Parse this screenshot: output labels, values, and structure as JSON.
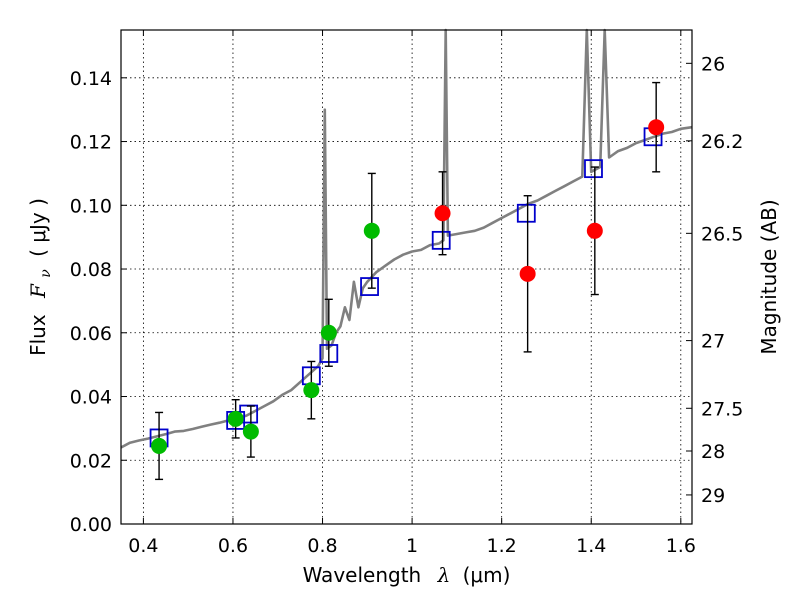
{
  "chart_data": {
    "type": "scatter",
    "xlabel": "Wavelength",
    "xlabel_symbol": "λ",
    "xlabel_unit": "(μm)",
    "ylabel": "Flux",
    "ylabel_symbol": "F",
    "ylabel_subscript": "ν",
    "ylabel_unit": "( μJy )",
    "y2label": "Magnitude (AB)",
    "xlim": [
      0.35,
      1.625
    ],
    "ylim": [
      0.0,
      0.155
    ],
    "x_ticks": [
      0.4,
      0.6,
      0.8,
      1.0,
      1.2,
      1.4,
      1.6
    ],
    "x_tick_labels": [
      "0.4",
      "0.6",
      "0.8",
      "1",
      "1.2",
      "1.4",
      "1.6"
    ],
    "y_ticks": [
      0.0,
      0.02,
      0.04,
      0.06,
      0.08,
      0.1,
      0.12,
      0.14
    ],
    "y_tick_labels": [
      "0.00",
      "0.02",
      "0.04",
      "0.06",
      "0.08",
      "0.10",
      "0.12",
      "0.14"
    ],
    "y2_ticks": [
      {
        "mag": 26,
        "label": "26"
      },
      {
        "mag": 26.2,
        "label": "26.2"
      },
      {
        "mag": 26.5,
        "label": "26.5"
      },
      {
        "mag": 27,
        "label": "27"
      },
      {
        "mag": 27.5,
        "label": "27.5"
      },
      {
        "mag": 28,
        "label": "28"
      },
      {
        "mag": 29,
        "label": "29"
      }
    ],
    "grid": true,
    "colors": {
      "model": "#808080",
      "model_photometry": "#0000cc",
      "detection": "#00bb00",
      "nir": "#ff0000",
      "errorbar": "#000000"
    },
    "model_spectrum": [
      [
        0.35,
        0.024
      ],
      [
        0.37,
        0.0255
      ],
      [
        0.39,
        0.0262
      ],
      [
        0.41,
        0.0268
      ],
      [
        0.43,
        0.0275
      ],
      [
        0.45,
        0.0282
      ],
      [
        0.47,
        0.029
      ],
      [
        0.49,
        0.0292
      ],
      [
        0.51,
        0.0298
      ],
      [
        0.53,
        0.0305
      ],
      [
        0.55,
        0.0312
      ],
      [
        0.57,
        0.0318
      ],
      [
        0.59,
        0.0325
      ],
      [
        0.61,
        0.0332
      ],
      [
        0.63,
        0.034
      ],
      [
        0.65,
        0.0355
      ],
      [
        0.67,
        0.037
      ],
      [
        0.69,
        0.0385
      ],
      [
        0.71,
        0.0405
      ],
      [
        0.73,
        0.042
      ],
      [
        0.75,
        0.0445
      ],
      [
        0.77,
        0.047
      ],
      [
        0.79,
        0.0495
      ],
      [
        0.8,
        0.052
      ],
      [
        0.805,
        0.13
      ],
      [
        0.81,
        0.055
      ],
      [
        0.82,
        0.056
      ],
      [
        0.83,
        0.06
      ],
      [
        0.84,
        0.062
      ],
      [
        0.85,
        0.068
      ],
      [
        0.86,
        0.064
      ],
      [
        0.87,
        0.076
      ],
      [
        0.88,
        0.068
      ],
      [
        0.89,
        0.074
      ],
      [
        0.9,
        0.076
      ],
      [
        0.92,
        0.079
      ],
      [
        0.94,
        0.081
      ],
      [
        0.96,
        0.083
      ],
      [
        0.98,
        0.0845
      ],
      [
        1.0,
        0.0855
      ],
      [
        1.02,
        0.086
      ],
      [
        1.04,
        0.0875
      ],
      [
        1.06,
        0.088
      ],
      [
        1.07,
        0.089
      ],
      [
        1.075,
        0.16
      ],
      [
        1.08,
        0.0905
      ],
      [
        1.1,
        0.091
      ],
      [
        1.12,
        0.0915
      ],
      [
        1.14,
        0.092
      ],
      [
        1.16,
        0.093
      ],
      [
        1.18,
        0.0945
      ],
      [
        1.2,
        0.096
      ],
      [
        1.22,
        0.0975
      ],
      [
        1.24,
        0.099
      ],
      [
        1.26,
        0.1005
      ],
      [
        1.28,
        0.1015
      ],
      [
        1.3,
        0.103
      ],
      [
        1.32,
        0.1045
      ],
      [
        1.34,
        0.106
      ],
      [
        1.36,
        0.1075
      ],
      [
        1.38,
        0.109
      ],
      [
        1.39,
        0.16
      ],
      [
        1.4,
        0.1105
      ],
      [
        1.42,
        0.112
      ],
      [
        1.43,
        0.16
      ],
      [
        1.44,
        0.115
      ],
      [
        1.46,
        0.117
      ],
      [
        1.48,
        0.118
      ],
      [
        1.5,
        0.1195
      ],
      [
        1.52,
        0.1205
      ],
      [
        1.54,
        0.1215
      ],
      [
        1.56,
        0.1225
      ],
      [
        1.58,
        0.123
      ],
      [
        1.6,
        0.124
      ],
      [
        1.625,
        0.1245
      ]
    ],
    "model_photometry": [
      {
        "x": 0.435,
        "y": 0.027
      },
      {
        "x": 0.606,
        "y": 0.0325
      },
      {
        "x": 0.635,
        "y": 0.0345
      },
      {
        "x": 0.775,
        "y": 0.0465
      },
      {
        "x": 0.814,
        "y": 0.0535
      },
      {
        "x": 0.905,
        "y": 0.0745
      },
      {
        "x": 1.065,
        "y": 0.089
      },
      {
        "x": 1.255,
        "y": 0.0975
      },
      {
        "x": 1.405,
        "y": 0.1115
      },
      {
        "x": 1.538,
        "y": 0.1215
      }
    ],
    "observed_optical": [
      {
        "x": 0.435,
        "y": 0.0245,
        "err": 0.0105
      },
      {
        "x": 0.606,
        "y": 0.033,
        "err": 0.006
      },
      {
        "x": 0.64,
        "y": 0.029,
        "err": 0.008
      },
      {
        "x": 0.775,
        "y": 0.042,
        "err": 0.009
      },
      {
        "x": 0.814,
        "y": 0.06,
        "err": 0.0105
      },
      {
        "x": 0.91,
        "y": 0.092,
        "err": 0.018
      }
    ],
    "observed_nir": [
      {
        "x": 1.068,
        "y": 0.0975,
        "err": 0.013
      },
      {
        "x": 1.258,
        "y": 0.0785,
        "err": 0.0245
      },
      {
        "x": 1.408,
        "y": 0.092,
        "err": 0.02
      },
      {
        "x": 1.545,
        "y": 0.1245,
        "err": 0.014
      }
    ]
  }
}
